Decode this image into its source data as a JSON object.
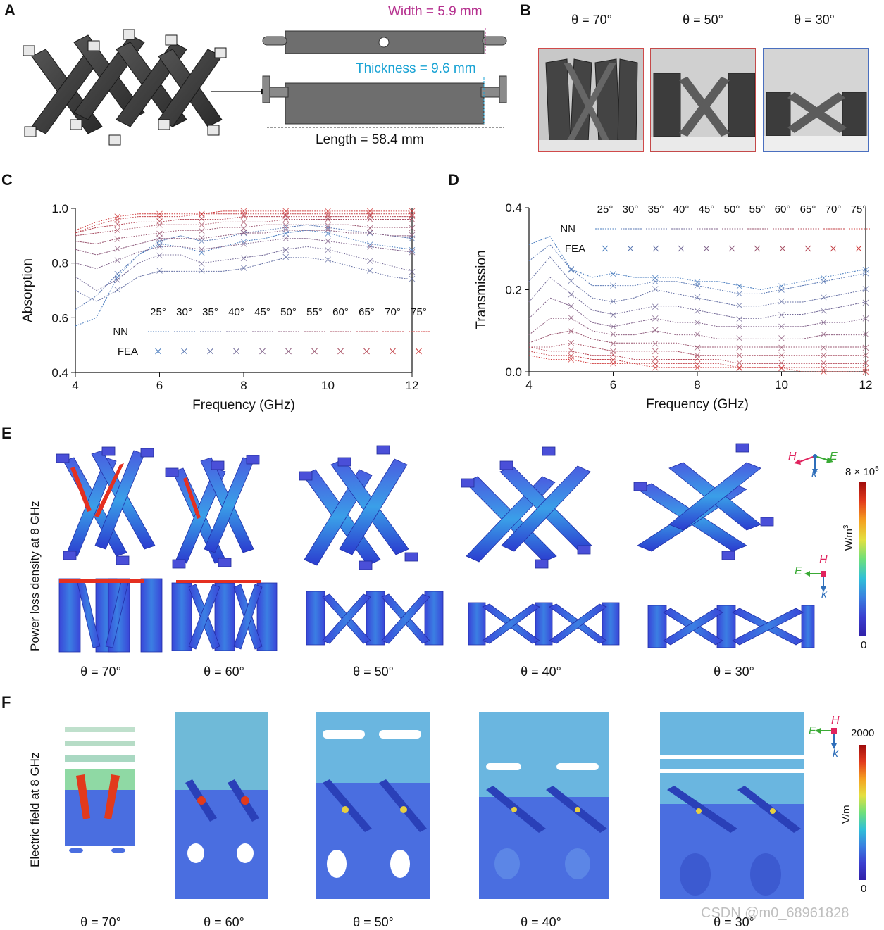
{
  "panels": {
    "A": {
      "letter": "A",
      "width_label": "Width = 5.9 mm",
      "thickness_label": "Thickness = 9.6 mm",
      "length_label": "Length = 58.4 mm",
      "colors": {
        "width": "#b5308e",
        "thickness": "#1aa3d4"
      }
    },
    "B": {
      "letter": "B",
      "angles": [
        "θ = 70°",
        "θ = 50°",
        "θ = 30°"
      ],
      "frame_colors": [
        "#d04a4a",
        "#c44a4a",
        "#4a6fbf"
      ]
    },
    "C": {
      "letter": "C"
    },
    "D": {
      "letter": "D"
    },
    "E": {
      "letter": "E",
      "ylabel": "Power loss density at 8 GHz",
      "angles": [
        "θ = 70°",
        "θ = 60°",
        "θ = 50°",
        "θ = 40°",
        "θ = 30°"
      ],
      "colorbar": {
        "max_label": "8 × 10",
        "max_exp": "5",
        "min_label": "0",
        "unit_label": "W/m",
        "unit_exp": "3"
      },
      "axes_top": {
        "h": "H",
        "e": "E",
        "k": "k"
      },
      "axes_bottom": {
        "h": "H",
        "e": "E",
        "k": "k"
      }
    },
    "F": {
      "letter": "F",
      "ylabel": "Electric field at 8 GHz",
      "angles": [
        "θ = 70°",
        "θ = 60°",
        "θ = 50°",
        "θ = 40°",
        "θ = 30°"
      ],
      "colorbar": {
        "max_label": "2000",
        "min_label": "0",
        "unit_label": "V/m"
      },
      "axes": {
        "h": "H",
        "e": "E",
        "k": "k"
      }
    }
  },
  "watermark": "CSDN @m0_68961828",
  "colors": {
    "nn_blue": "#4a7dbf",
    "nn_red": "#d03a3a",
    "fea_blue": "#6b8fcf",
    "fea_red": "#d85a5a",
    "axes_h": "#e0245e",
    "axes_e": "#3aaa35",
    "axes_k": "#2f6fba"
  },
  "chart_data": [
    {
      "type": "line",
      "panel": "C",
      "xlabel": "Frequency (GHz)",
      "ylabel": "Absorption",
      "xlim": [
        4,
        12
      ],
      "ylim": [
        0.4,
        1.0
      ],
      "xticks": [
        4,
        6,
        8,
        10,
        12
      ],
      "yticks": [
        0.4,
        0.6,
        0.8,
        1.0
      ],
      "xtick_labels": [
        "4",
        "6",
        "8",
        "10",
        "12"
      ],
      "ytick_labels": [
        "0.4",
        "0.6",
        "0.8",
        "1.0"
      ],
      "legend": {
        "angles": [
          "25°",
          "30°",
          "35°",
          "40°",
          "45°",
          "50°",
          "55°",
          "60°",
          "65°",
          "70°",
          "75°"
        ],
        "nn_label": "NN",
        "fea_label": "FEA",
        "position": "lower-right"
      },
      "x": [
        4,
        4.5,
        5,
        5.5,
        6,
        6.5,
        7,
        7.5,
        8,
        8.5,
        9,
        9.5,
        10,
        10.5,
        11,
        11.5,
        12
      ],
      "series": [
        {
          "angle": "25°",
          "values": [
            0.57,
            0.6,
            0.75,
            0.83,
            0.87,
            0.86,
            0.84,
            0.86,
            0.88,
            0.89,
            0.91,
            0.92,
            0.91,
            0.89,
            0.87,
            0.86,
            0.85
          ]
        },
        {
          "angle": "30°",
          "values": [
            0.63,
            0.68,
            0.76,
            0.83,
            0.88,
            0.9,
            0.88,
            0.89,
            0.91,
            0.92,
            0.93,
            0.94,
            0.93,
            0.92,
            0.91,
            0.9,
            0.89
          ]
        },
        {
          "angle": "35°",
          "values": [
            0.7,
            0.66,
            0.7,
            0.75,
            0.77,
            0.77,
            0.77,
            0.77,
            0.78,
            0.8,
            0.82,
            0.82,
            0.81,
            0.79,
            0.77,
            0.75,
            0.74
          ]
        },
        {
          "angle": "40°",
          "values": [
            0.75,
            0.7,
            0.74,
            0.8,
            0.83,
            0.83,
            0.8,
            0.81,
            0.82,
            0.83,
            0.85,
            0.86,
            0.85,
            0.83,
            0.81,
            0.79,
            0.77
          ]
        },
        {
          "angle": "45°",
          "values": [
            0.8,
            0.78,
            0.81,
            0.84,
            0.86,
            0.86,
            0.85,
            0.86,
            0.87,
            0.88,
            0.89,
            0.89,
            0.88,
            0.87,
            0.86,
            0.85,
            0.84
          ]
        },
        {
          "angle": "50°",
          "values": [
            0.85,
            0.83,
            0.85,
            0.87,
            0.89,
            0.89,
            0.89,
            0.9,
            0.91,
            0.91,
            0.92,
            0.92,
            0.92,
            0.91,
            0.91,
            0.9,
            0.9
          ]
        },
        {
          "angle": "55°",
          "values": [
            0.88,
            0.87,
            0.89,
            0.9,
            0.91,
            0.92,
            0.92,
            0.93,
            0.93,
            0.94,
            0.94,
            0.94,
            0.94,
            0.94,
            0.93,
            0.93,
            0.93
          ]
        },
        {
          "angle": "60°",
          "values": [
            0.9,
            0.91,
            0.92,
            0.93,
            0.94,
            0.94,
            0.94,
            0.95,
            0.95,
            0.95,
            0.96,
            0.96,
            0.96,
            0.96,
            0.96,
            0.96,
            0.96
          ]
        },
        {
          "angle": "65°",
          "values": [
            0.91,
            0.93,
            0.94,
            0.95,
            0.95,
            0.96,
            0.96,
            0.96,
            0.97,
            0.97,
            0.97,
            0.97,
            0.97,
            0.97,
            0.97,
            0.97,
            0.97
          ]
        },
        {
          "angle": "70°",
          "values": [
            0.91,
            0.94,
            0.96,
            0.97,
            0.97,
            0.97,
            0.98,
            0.98,
            0.98,
            0.98,
            0.98,
            0.98,
            0.98,
            0.98,
            0.98,
            0.98,
            0.98
          ]
        },
        {
          "angle": "75°",
          "values": [
            0.92,
            0.95,
            0.97,
            0.98,
            0.98,
            0.98,
            0.98,
            0.99,
            0.99,
            0.99,
            0.99,
            0.99,
            0.99,
            0.99,
            0.99,
            0.99,
            0.99
          ]
        }
      ]
    },
    {
      "type": "line",
      "panel": "D",
      "xlabel": "Frequency (GHz)",
      "ylabel": "Transmission",
      "xlim": [
        4,
        12
      ],
      "ylim": [
        0,
        0.4
      ],
      "xticks": [
        4,
        6,
        8,
        10,
        12
      ],
      "yticks": [
        0.0,
        0.2,
        0.4
      ],
      "xtick_labels": [
        "4",
        "6",
        "8",
        "10",
        "12"
      ],
      "ytick_labels": [
        "0.0",
        "0.2",
        "0.4"
      ],
      "legend": {
        "angles": [
          "25°",
          "30°",
          "35°",
          "40°",
          "45°",
          "50°",
          "55°",
          "60°",
          "65°",
          "70°",
          "75°"
        ],
        "nn_label": "NN",
        "fea_label": "FEA",
        "position": "top-right"
      },
      "x": [
        4,
        4.5,
        5,
        5.5,
        6,
        6.5,
        7,
        7.5,
        8,
        8.5,
        9,
        9.5,
        10,
        10.5,
        11,
        11.5,
        12
      ],
      "series": [
        {
          "angle": "25°",
          "values": [
            0.31,
            0.33,
            0.25,
            0.23,
            0.24,
            0.23,
            0.23,
            0.23,
            0.22,
            0.22,
            0.21,
            0.2,
            0.21,
            0.22,
            0.23,
            0.24,
            0.25
          ]
        },
        {
          "angle": "30°",
          "values": [
            0.27,
            0.31,
            0.25,
            0.21,
            0.21,
            0.21,
            0.22,
            0.22,
            0.21,
            0.2,
            0.19,
            0.19,
            0.2,
            0.21,
            0.22,
            0.23,
            0.24
          ]
        },
        {
          "angle": "35°",
          "values": [
            0.22,
            0.28,
            0.22,
            0.18,
            0.17,
            0.18,
            0.2,
            0.19,
            0.18,
            0.17,
            0.16,
            0.16,
            0.17,
            0.17,
            0.18,
            0.19,
            0.2
          ]
        },
        {
          "angle": "40°",
          "values": [
            0.17,
            0.23,
            0.19,
            0.15,
            0.14,
            0.15,
            0.16,
            0.16,
            0.15,
            0.14,
            0.13,
            0.13,
            0.14,
            0.14,
            0.15,
            0.16,
            0.17
          ]
        },
        {
          "angle": "45°",
          "values": [
            0.13,
            0.18,
            0.16,
            0.12,
            0.11,
            0.12,
            0.13,
            0.12,
            0.12,
            0.11,
            0.11,
            0.11,
            0.11,
            0.11,
            0.12,
            0.12,
            0.13
          ]
        },
        {
          "angle": "50°",
          "values": [
            0.09,
            0.13,
            0.13,
            0.1,
            0.09,
            0.09,
            0.1,
            0.09,
            0.09,
            0.08,
            0.08,
            0.08,
            0.08,
            0.08,
            0.09,
            0.09,
            0.09
          ]
        },
        {
          "angle": "55°",
          "values": [
            0.07,
            0.09,
            0.1,
            0.08,
            0.07,
            0.07,
            0.07,
            0.07,
            0.06,
            0.06,
            0.06,
            0.06,
            0.06,
            0.06,
            0.06,
            0.06,
            0.06
          ]
        },
        {
          "angle": "60°",
          "values": [
            0.06,
            0.06,
            0.07,
            0.06,
            0.05,
            0.05,
            0.05,
            0.05,
            0.04,
            0.04,
            0.04,
            0.04,
            0.04,
            0.04,
            0.04,
            0.04,
            0.04
          ]
        },
        {
          "angle": "65°",
          "values": [
            0.06,
            0.05,
            0.05,
            0.04,
            0.04,
            0.03,
            0.03,
            0.03,
            0.03,
            0.03,
            0.02,
            0.02,
            0.02,
            0.02,
            0.02,
            0.02,
            0.02
          ]
        },
        {
          "angle": "70°",
          "values": [
            0.05,
            0.04,
            0.04,
            0.03,
            0.03,
            0.02,
            0.02,
            0.02,
            0.02,
            0.02,
            0.01,
            0.01,
            0.01,
            0.01,
            0.01,
            0.01,
            0.01
          ]
        },
        {
          "angle": "75°",
          "values": [
            0.04,
            0.03,
            0.03,
            0.02,
            0.02,
            0.02,
            0.01,
            0.01,
            0.01,
            0.01,
            0.01,
            0.01,
            0.01,
            0.0,
            0.0,
            0.0,
            0.0
          ]
        }
      ]
    }
  ]
}
